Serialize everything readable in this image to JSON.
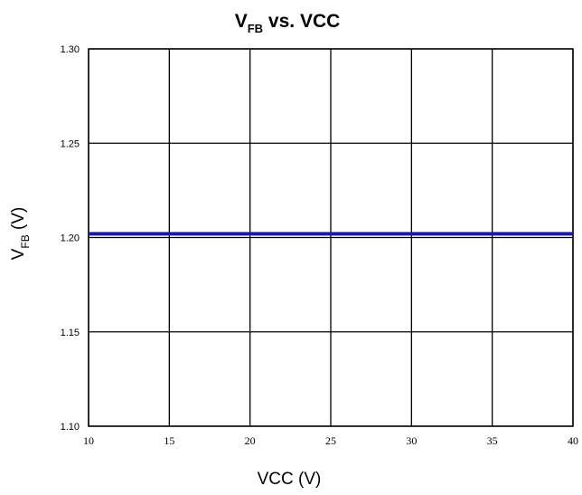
{
  "chart_data": {
    "type": "line",
    "title": {
      "main": "V",
      "main_subscript": "FB",
      "rest": " vs. VCC"
    },
    "xlabel": "VCC (V)",
    "ylabel": {
      "main": "V",
      "subscript": "FB",
      "rest": " (V)"
    },
    "xlim": [
      10,
      40
    ],
    "ylim": [
      1.1,
      1.3
    ],
    "x_ticks": [
      "10",
      "15",
      "20",
      "25",
      "30",
      "35",
      "40"
    ],
    "y_ticks": [
      "1.10",
      "1.15",
      "1.20",
      "1.25",
      "1.30"
    ],
    "grid": true,
    "series": [
      {
        "color": "#1a1aa8",
        "x": [
          10,
          15,
          20,
          25,
          30,
          35,
          40
        ],
        "y": [
          1.202,
          1.202,
          1.202,
          1.202,
          1.202,
          1.202,
          1.202
        ]
      }
    ]
  }
}
